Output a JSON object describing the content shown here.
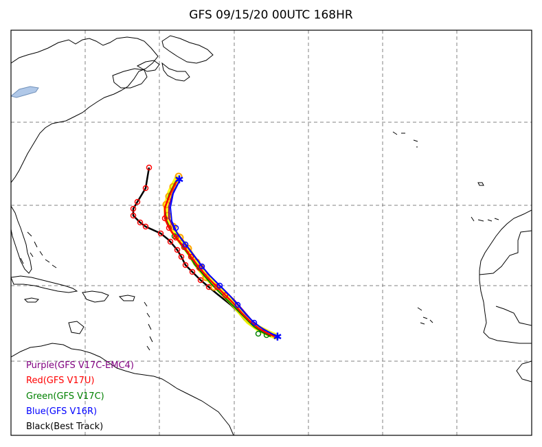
{
  "title": "GFS 09/15/20 00UTC 168HR",
  "legend": [
    {
      "label": "Purple(GFS V17C-EMC4)",
      "color": "#800080"
    },
    {
      "label": "Red(GFS V17U)",
      "color": "#ff0000"
    },
    {
      "label": "Green(GFS V17C)",
      "color": "#008000"
    },
    {
      "label": "Blue(GFS V16R)",
      "color": "#0000ff"
    },
    {
      "label": "Black(Best Track)",
      "color": "#000000"
    }
  ],
  "colors": {
    "purple": "#800080",
    "red": "#ff0000",
    "green": "#008000",
    "blue": "#0000ff",
    "black": "#000000",
    "orange": "#ffa500",
    "yellow": "#ffff00",
    "grid": "#808080"
  }
}
